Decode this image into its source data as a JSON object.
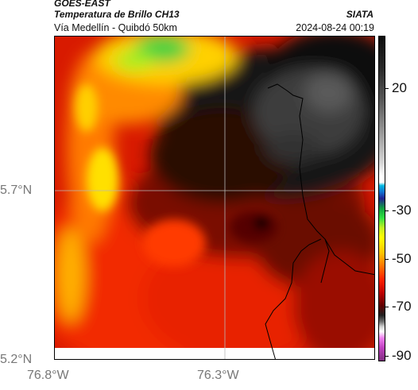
{
  "header": {
    "satellite": "GOES-EAST",
    "product": "Temperatura de Brillo CH13",
    "location": "Vía Medellín - Quibdó 50km",
    "source": "SIATA",
    "timestamp": "2024-08-24 00:19"
  },
  "map": {
    "lat_ticks": [
      "5.7°N",
      "5.2°N"
    ],
    "lon_ticks": [
      "76.8°W",
      "76.3°W"
    ],
    "gridlines": true,
    "boundary_lines": true
  },
  "colorbar": {
    "labels": [
      "20",
      "-30",
      "-50",
      "-70",
      "-90"
    ],
    "colors": {
      "warm": "#ff2000",
      "hot": "#c00000",
      "dark": "#111111",
      "cold_gray": "#5a5a5a",
      "green": "#30e040",
      "yellow": "#ffff00",
      "cyan": "#00b8e0",
      "magenta": "#c040c0"
    }
  }
}
